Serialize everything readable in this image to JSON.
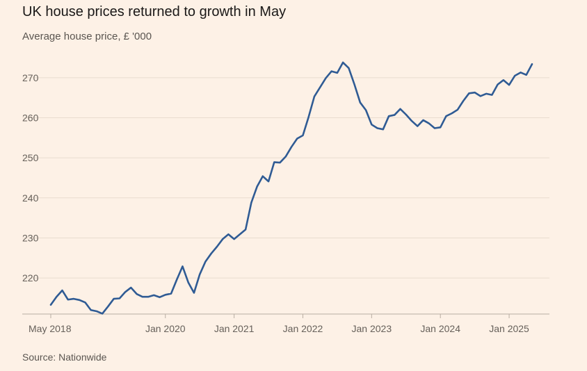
{
  "colors": {
    "background": "#fdf1e6",
    "series": "#2f5b94"
  },
  "chart_data": {
    "type": "line",
    "title": "UK house prices returned to growth in May",
    "subtitle": "Average house price, £ '000",
    "source": "Source: Nationwide",
    "xlabel": "",
    "ylabel": "",
    "grid": true,
    "ylim": [
      211,
      275
    ],
    "yticks": [
      220,
      230,
      240,
      250,
      260,
      270
    ],
    "xticks": [
      {
        "label": "May 2018",
        "date": "2018-05"
      },
      {
        "label": "Jan 2020",
        "date": "2020-01"
      },
      {
        "label": "Jan 2021",
        "date": "2021-01"
      },
      {
        "label": "Jan 2022",
        "date": "2022-01"
      },
      {
        "label": "Jan 2023",
        "date": "2023-01"
      },
      {
        "label": "Jan 2024",
        "date": "2024-01"
      },
      {
        "label": "Jan 2025",
        "date": "2025-01"
      }
    ],
    "x": [
      "2018-05",
      "2018-06",
      "2018-07",
      "2018-08",
      "2018-09",
      "2018-10",
      "2018-11",
      "2018-12",
      "2019-01",
      "2019-02",
      "2019-03",
      "2019-04",
      "2019-05",
      "2019-06",
      "2019-07",
      "2019-08",
      "2019-09",
      "2019-10",
      "2019-11",
      "2019-12",
      "2020-01",
      "2020-02",
      "2020-03",
      "2020-04",
      "2020-05",
      "2020-06",
      "2020-07",
      "2020-08",
      "2020-09",
      "2020-10",
      "2020-11",
      "2020-12",
      "2021-01",
      "2021-02",
      "2021-03",
      "2021-04",
      "2021-05",
      "2021-06",
      "2021-07",
      "2021-08",
      "2021-09",
      "2021-10",
      "2021-11",
      "2021-12",
      "2022-01",
      "2022-02",
      "2022-03",
      "2022-04",
      "2022-05",
      "2022-06",
      "2022-07",
      "2022-08",
      "2022-09",
      "2022-10",
      "2022-11",
      "2022-12",
      "2023-01",
      "2023-02",
      "2023-03",
      "2023-04",
      "2023-05",
      "2023-06",
      "2023-07",
      "2023-08",
      "2023-09",
      "2023-10",
      "2023-11",
      "2023-12",
      "2024-01",
      "2024-02",
      "2024-03",
      "2024-04",
      "2024-05",
      "2024-06",
      "2024-07",
      "2024-08",
      "2024-09",
      "2024-10",
      "2024-11",
      "2024-12",
      "2025-01",
      "2025-02",
      "2025-03",
      "2025-04",
      "2025-05"
    ],
    "series": [
      {
        "values": [
          213.3,
          215.3,
          216.9,
          214.6,
          214.8,
          214.5,
          213.9,
          212.0,
          211.7,
          211.1,
          212.9,
          214.8,
          214.9,
          216.5,
          217.6,
          216.0,
          215.3,
          215.3,
          215.7,
          215.2,
          215.8,
          216.1,
          219.6,
          222.9,
          218.9,
          216.3,
          220.9,
          224.1,
          226.1,
          227.8,
          229.7,
          230.9,
          229.7,
          230.9,
          232.1,
          238.8,
          242.8,
          245.4,
          244.1,
          248.9,
          248.8,
          250.3,
          252.7,
          254.8,
          255.6,
          260.2,
          265.3,
          267.6,
          269.9,
          271.6,
          271.2,
          273.8,
          272.4,
          268.3,
          263.8,
          261.9,
          258.3,
          257.4,
          257.1,
          260.4,
          260.7,
          262.2,
          260.8,
          259.2,
          257.9,
          259.4,
          258.6,
          257.4,
          257.6,
          260.4,
          261.1,
          262.0,
          264.2,
          266.1,
          266.3,
          265.4,
          266.0,
          265.7,
          268.3,
          269.4,
          268.2,
          270.5,
          271.3,
          270.7,
          273.4
        ]
      }
    ]
  }
}
